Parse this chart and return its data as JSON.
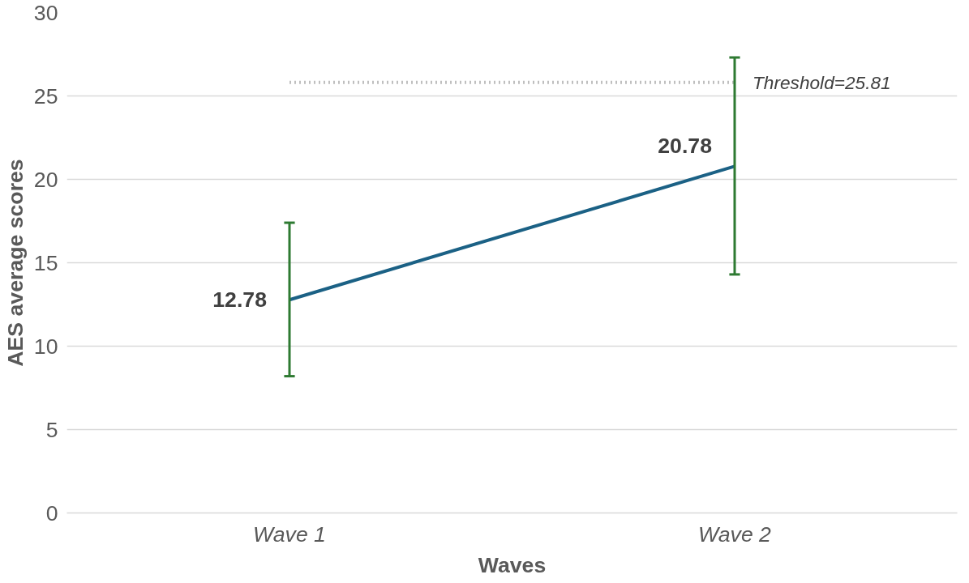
{
  "chart_data": {
    "type": "line",
    "xlabel": "Waves",
    "ylabel": "AES average scores",
    "categories": [
      "Wave 1",
      "Wave 2"
    ],
    "series": [
      {
        "color": "#1b6185",
        "values": [
          12.78,
          20.78
        ],
        "errors": [
          [
            8.2,
            17.4
          ],
          [
            14.3,
            27.3
          ]
        ]
      }
    ],
    "ylim": [
      0,
      30
    ],
    "yticks": [
      0,
      5,
      10,
      15,
      20,
      25,
      30
    ],
    "ref_lines": [
      {
        "axis": "y",
        "value": 25.81,
        "label": "Threshold=25.81",
        "color": "#bfbfbf",
        "line_style": "dotted"
      }
    ],
    "data_labels": true,
    "grid": "y",
    "marker": "none",
    "line_style": "solid"
  }
}
